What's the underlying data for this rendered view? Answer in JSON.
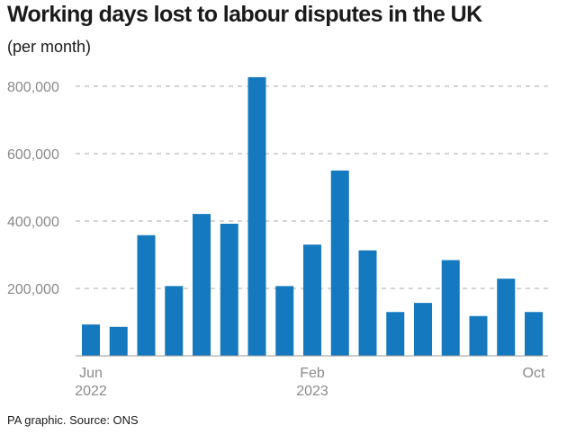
{
  "title": "Working days lost to labour disputes in the UK",
  "subtitle": "(per month)",
  "source": "PA graphic. Source: ONS",
  "colors": {
    "bar": "#1479be",
    "grid": "#a8a8a8",
    "axis": "#9a9a9a",
    "tick_text": "#8a8a8a"
  },
  "chart_data": {
    "type": "bar",
    "title": "Working days lost to labour disputes in the UK",
    "subtitle": "(per month)",
    "categories": [
      "Jun 2022",
      "Jul 2022",
      "Aug 2022",
      "Sep 2022",
      "Oct 2022",
      "Nov 2022",
      "Dec 2022",
      "Jan 2023",
      "Feb 2023",
      "Mar 2023",
      "Apr 2023",
      "May 2023",
      "Jun 2023",
      "Jul 2023",
      "Aug 2023",
      "Sep 2023",
      "Oct 2023"
    ],
    "values": [
      93000,
      86000,
      358000,
      207000,
      421000,
      392000,
      827000,
      207000,
      330000,
      550000,
      313000,
      130000,
      157000,
      284000,
      118000,
      229000,
      130000
    ],
    "ylim": [
      0,
      800000
    ],
    "yticks": [
      200000,
      400000,
      600000,
      800000
    ],
    "ytick_labels": [
      "200,000",
      "400,000",
      "600,000",
      "800,000"
    ],
    "xtick_labels": [
      {
        "index": 0,
        "line1": "Jun",
        "line2": "2022"
      },
      {
        "index": 8,
        "line1": "Feb",
        "line2": "2023"
      },
      {
        "index": 16,
        "line1": "Oct",
        "line2": ""
      }
    ],
    "xlabel": "",
    "ylabel": "",
    "grid": true,
    "legend": "none"
  }
}
